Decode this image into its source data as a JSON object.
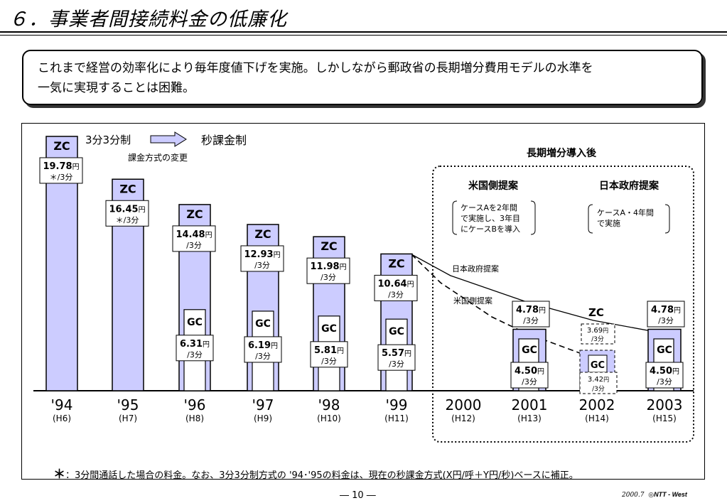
{
  "title": "６．事業者間接続料金の低廉化",
  "summary": {
    "line1": "これまで経営の効率化により毎年度値下げを実施。しかしながら郵政省の長期増分費用モデルの水準を",
    "line2": "一気に実現することは困難。"
  },
  "legend": {
    "from": "3分3分制",
    "to": "秒課金制",
    "caption": "課金方式の変更"
  },
  "lric": {
    "title": "長期増分導入後",
    "us_title": "米国側提案",
    "us_desc": [
      "ケースAを2年間",
      "で実施し、3年目",
      "にケースBを導入"
    ],
    "jp_title": "日本政府提案",
    "jp_desc": [
      "ケースA・4年間",
      "で実施"
    ],
    "line_label_jp": "日本政府提案",
    "line_label_us": "米国側提案"
  },
  "footnote": {
    "mark": "＊",
    "text": "：3分間通話した場合の料金。なお、3分3分制方式の '94･'95の料金は、現在の秒課金方式(X円/呼＋Y円/秒)ベースに補正。"
  },
  "page": "― 10 ―",
  "credit": {
    "date": "2000.7",
    "company": "NTT - West"
  },
  "colors": {
    "bar_fill": "#ccccff",
    "inner_fill": "#ffffff",
    "ink": "#000000"
  },
  "chart_data": {
    "type": "bar",
    "categories": [
      "'94",
      "'95",
      "'96",
      "'97",
      "'98",
      "'99",
      "2000",
      "2001",
      "2002",
      "2003"
    ],
    "era_labels": [
      "(H6)",
      "(H7)",
      "(H8)",
      "(H9)",
      "(H10)",
      "(H11)",
      "(H12)",
      "(H13)",
      "(H14)",
      "(H15)"
    ],
    "zc_label": "ZC",
    "gc_label": "GC",
    "unit": "円",
    "zc_values": [
      19.78,
      16.45,
      14.48,
      12.93,
      11.98,
      10.64,
      null,
      4.78,
      null,
      4.78
    ],
    "zc_value_texts": [
      "19.78",
      "16.45",
      "14.48",
      "12.93",
      "11.98",
      "10.64",
      "",
      "4.78",
      "",
      "4.78"
    ],
    "zc_subs": [
      "＊/3分",
      "＊/3分",
      "/3分",
      "/3分",
      "/3分",
      "/3分",
      "",
      "/3分",
      "",
      "/3分"
    ],
    "gc_values": [
      null,
      null,
      6.31,
      6.19,
      5.81,
      5.57,
      null,
      4.5,
      null,
      4.5
    ],
    "gc_value_texts": [
      "",
      "",
      "6.31",
      "6.19",
      "5.81",
      "5.57",
      "",
      "4.50",
      "",
      "4.50"
    ],
    "gc_subs": [
      "",
      "",
      "/3分",
      "/3分",
      "/3分",
      "/3分",
      "",
      "/3分",
      "",
      "/3分"
    ],
    "us_proposal_2002": {
      "zc": "3.69",
      "zc_unit": "円",
      "gc": "3.42",
      "gc_unit": "円",
      "sub": "/3分"
    }
  }
}
